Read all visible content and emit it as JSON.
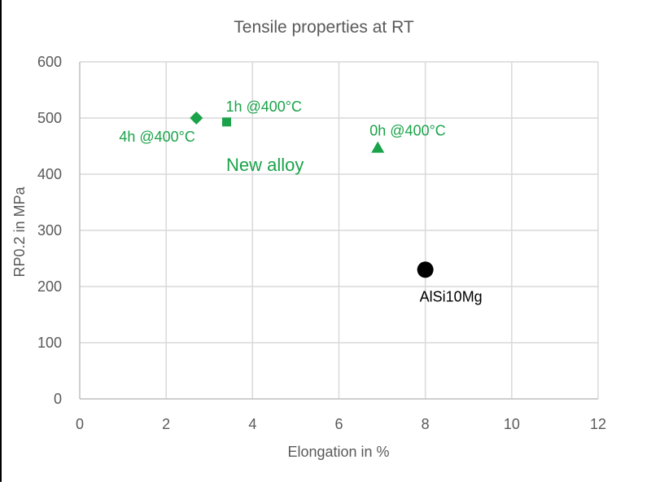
{
  "colors": {
    "new_alloy": "#1aa34a",
    "reference": "#000000",
    "grid": "#d9d9d9",
    "axis": "#bfbfbf",
    "text": "#595959"
  },
  "chart_data": {
    "type": "scatter",
    "title": "Tensile properties at RT",
    "xlabel": "Elongation in %",
    "ylabel": "RP0.2 in MPa",
    "xlim": [
      0,
      12
    ],
    "ylim": [
      0,
      600
    ],
    "x_ticks": [
      "0",
      "2",
      "4",
      "6",
      "8",
      "10",
      "12"
    ],
    "y_ticks": [
      "0",
      "100",
      "200",
      "300",
      "400",
      "500",
      "600"
    ],
    "grid": true,
    "annotations": [
      "New alloy"
    ],
    "series": [
      {
        "name": "New alloy",
        "color": "#1aa34a",
        "points": [
          {
            "label": "4h @400°C",
            "x": 2.7,
            "y": 500,
            "marker": "diamond"
          },
          {
            "label": "1h @400°C",
            "x": 3.4,
            "y": 493,
            "marker": "square"
          },
          {
            "label": "0h @400°C",
            "x": 6.9,
            "y": 447,
            "marker": "triangle"
          }
        ]
      },
      {
        "name": "AlSi10Mg",
        "color": "#000000",
        "points": [
          {
            "label": "AlSi10Mg",
            "x": 8.0,
            "y": 230,
            "marker": "circle"
          }
        ]
      }
    ]
  }
}
